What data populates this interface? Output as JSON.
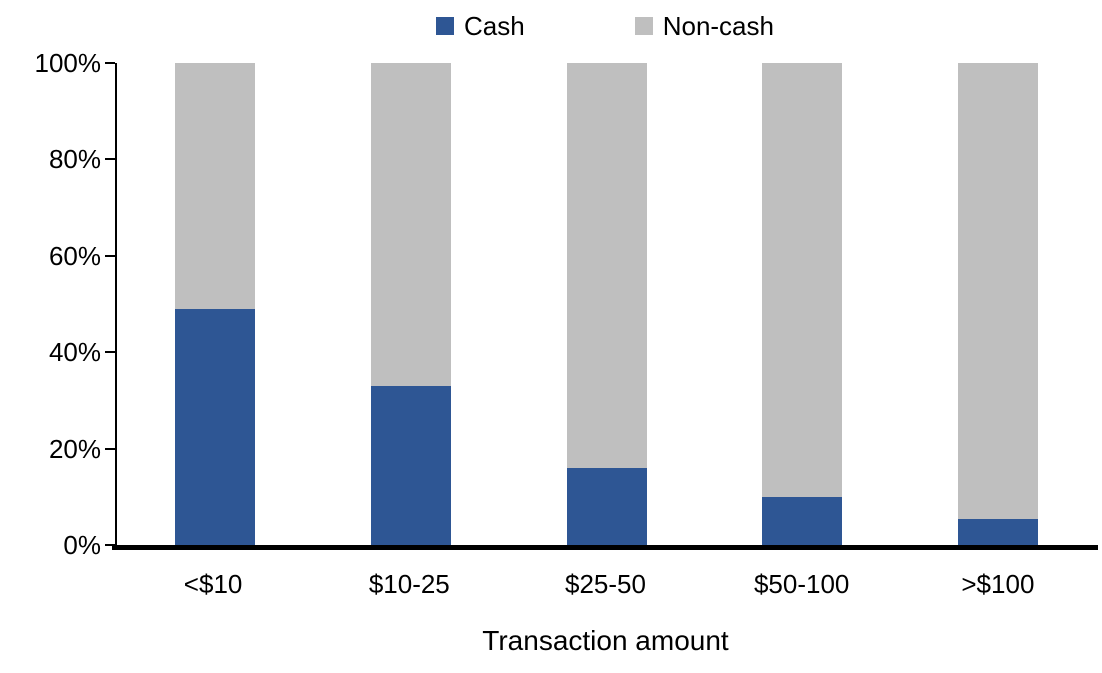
{
  "chart_data": {
    "type": "bar",
    "stacked": true,
    "orientation": "vertical",
    "title": "",
    "xlabel": "Transaction amount",
    "ylabel": "",
    "categories": [
      "<$10",
      "$10-25",
      "$25-50",
      "$50-100",
      ">$100"
    ],
    "series": [
      {
        "name": "Cash",
        "color": "#2E5694",
        "values": [
          49,
          33,
          16,
          10,
          5.5
        ]
      },
      {
        "name": "Non-cash",
        "color": "#BFBFBF",
        "values": [
          51,
          67,
          84,
          90,
          94.5
        ]
      }
    ],
    "ylim": [
      0,
      100
    ],
    "yticks": [
      0,
      20,
      40,
      60,
      80,
      100
    ],
    "ytick_suffix": "%",
    "grid": false,
    "legend_position": "top",
    "axis_color": "#000000",
    "background_color": "#FFFFFF"
  }
}
